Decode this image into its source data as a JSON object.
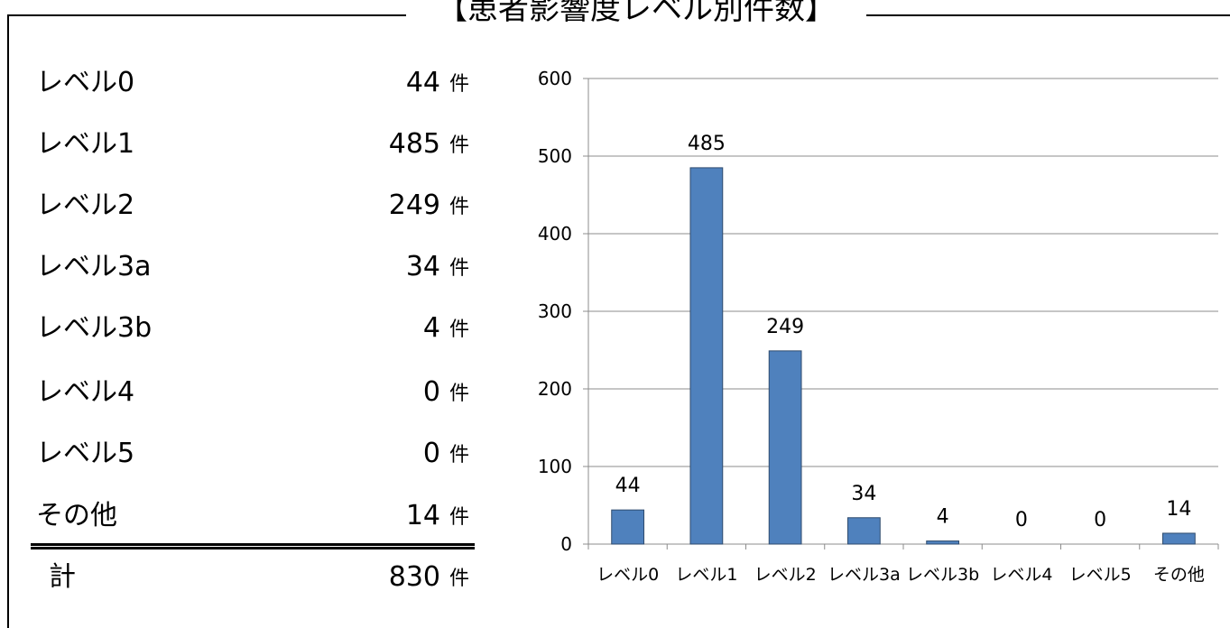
{
  "title": "【患者影響度レベル別件数】",
  "unit": "件",
  "summary": {
    "rows": [
      {
        "label": "レベル0",
        "value": "44"
      },
      {
        "label": "レベル1",
        "value": "485"
      },
      {
        "label": "レベル2",
        "value": "249"
      },
      {
        "label": "レベル3a",
        "value": "34"
      },
      {
        "label": "レベル3b",
        "value": "4"
      },
      {
        "label": "レベル4",
        "value": "0"
      },
      {
        "label": "レベル5",
        "value": "0"
      },
      {
        "label": "その他",
        "value": "14"
      }
    ],
    "total_label": "計",
    "total_value": "830"
  },
  "chart_data": {
    "type": "bar",
    "categories": [
      "レベル0",
      "レベル1",
      "レベル2",
      "レベル3a",
      "レベル3b",
      "レベル4",
      "レベル5",
      "その他"
    ],
    "values": [
      44,
      485,
      249,
      34,
      4,
      0,
      0,
      14
    ],
    "data_labels": [
      "44",
      "485",
      "249",
      "34",
      "4",
      "0",
      "0",
      "14"
    ],
    "y_ticks": [
      0,
      100,
      200,
      300,
      400,
      500,
      600
    ],
    "ylim": [
      0,
      600
    ],
    "title": "",
    "xlabel": "",
    "ylabel": "",
    "grid": true,
    "legend": "none",
    "bar_color": "#4F81BD",
    "bar_edge": "#2F4B6E",
    "grid_color": "#8C8C8C"
  }
}
